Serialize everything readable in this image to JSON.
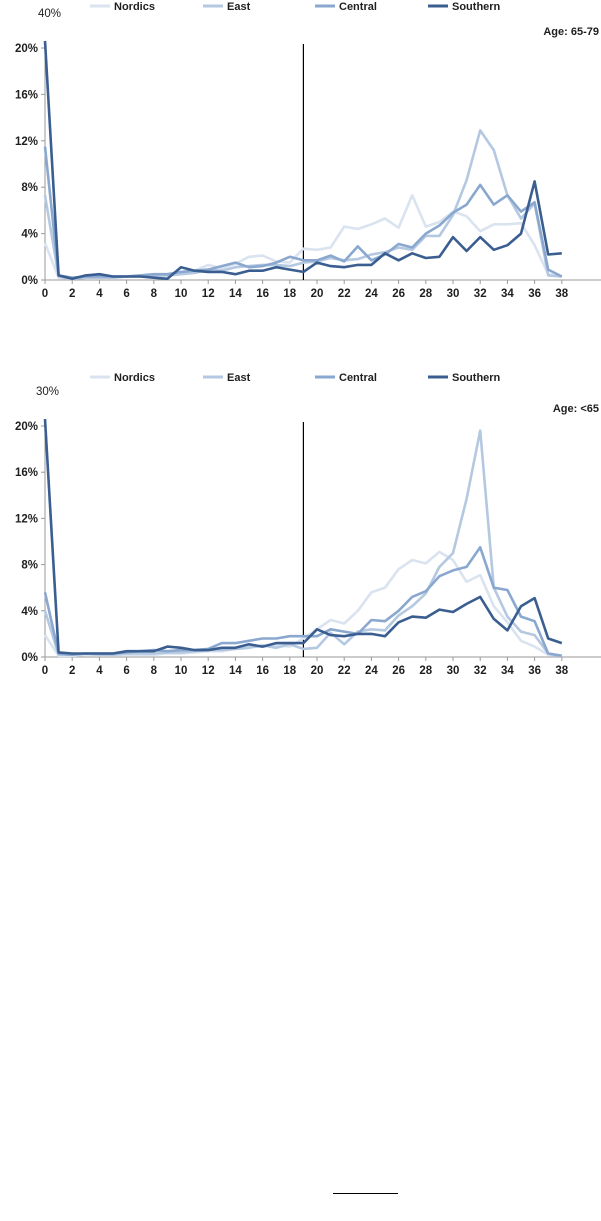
{
  "colors": {
    "Nordics": "#dae3f0",
    "East": "#b4c8e1",
    "Central": "#8aa8cf",
    "Southern": "#3a5e90",
    "axis": "#9a9a9a",
    "divider": "#000000"
  },
  "chart_data": [
    {
      "type": "line",
      "corner_label": "Age: 65-79",
      "peak_label": "40%",
      "ylim": [
        0,
        20
      ],
      "y_ticks": [
        "0%",
        "4%",
        "8%",
        "12%",
        "16%",
        "20%"
      ],
      "x_ticks": [
        "0",
        "2",
        "4",
        "6",
        "8",
        "10",
        "12",
        "14",
        "16",
        "18",
        "20",
        "22",
        "24",
        "26",
        "28",
        "30",
        "32",
        "34",
        "36",
        "38"
      ],
      "divider_x": 19,
      "legend_position": "top",
      "x": [
        0,
        1,
        2,
        3,
        4,
        5,
        6,
        7,
        8,
        9,
        10,
        11,
        12,
        13,
        14,
        15,
        16,
        17,
        18,
        19,
        20,
        21,
        22,
        23,
        24,
        25,
        26,
        27,
        28,
        29,
        30,
        31,
        32,
        33,
        34,
        35,
        36,
        37,
        38
      ],
      "series": [
        {
          "name": "Nordics",
          "values": [
            3.2,
            0.2,
            0.1,
            0.2,
            0.2,
            0.2,
            0.3,
            0.4,
            0.4,
            0.5,
            0.6,
            0.8,
            1.3,
            1.0,
            1.4,
            2.0,
            2.1,
            1.6,
            1.5,
            2.7,
            2.6,
            2.8,
            4.6,
            4.4,
            4.8,
            5.3,
            4.5,
            7.3,
            4.6,
            5.0,
            5.9,
            5.5,
            4.2,
            4.8,
            4.8,
            4.9,
            3.0,
            0.5,
            0.3
          ]
        },
        {
          "name": "East",
          "values": [
            7.3,
            0.3,
            0.1,
            0.2,
            0.2,
            0.2,
            0.3,
            0.3,
            0.4,
            0.4,
            0.5,
            0.6,
            0.9,
            0.8,
            1.1,
            1.2,
            1.3,
            1.3,
            1.2,
            1.5,
            1.6,
            1.9,
            1.7,
            1.8,
            2.2,
            2.4,
            2.8,
            2.6,
            3.8,
            3.8,
            5.6,
            8.6,
            12.9,
            11.2,
            7.3,
            5.3,
            6.6,
            0.4,
            0.3
          ]
        },
        {
          "name": "Central",
          "values": [
            11.5,
            0.4,
            0.2,
            0.3,
            0.3,
            0.3,
            0.3,
            0.4,
            0.5,
            0.5,
            0.7,
            0.8,
            0.9,
            1.2,
            1.5,
            1.1,
            1.2,
            1.5,
            2.0,
            1.7,
            1.7,
            2.1,
            1.6,
            2.9,
            1.7,
            2.2,
            3.1,
            2.8,
            4.0,
            4.7,
            5.8,
            6.5,
            8.2,
            6.5,
            7.3,
            5.9,
            6.7,
            0.9,
            0.3
          ]
        },
        {
          "name": "Southern",
          "values": [
            21.0,
            0.4,
            0.1,
            0.4,
            0.5,
            0.3,
            0.3,
            0.3,
            0.2,
            0.1,
            1.1,
            0.8,
            0.7,
            0.7,
            0.5,
            0.8,
            0.8,
            1.1,
            0.9,
            0.7,
            1.5,
            1.2,
            1.1,
            1.3,
            1.3,
            2.3,
            1.7,
            2.3,
            1.9,
            2.0,
            3.7,
            2.5,
            3.7,
            2.6,
            3.0,
            4.0,
            8.5,
            2.2,
            2.3
          ]
        }
      ]
    },
    {
      "type": "line",
      "corner_label": "Age: <65",
      "peak_label": "30%",
      "ylim": [
        0,
        20
      ],
      "y_ticks": [
        "0%",
        "4%",
        "8%",
        "12%",
        "16%",
        "20%"
      ],
      "x_ticks": [
        "0",
        "2",
        "4",
        "6",
        "8",
        "10",
        "12",
        "14",
        "16",
        "18",
        "20",
        "22",
        "24",
        "26",
        "28",
        "30",
        "32",
        "34",
        "36",
        "38"
      ],
      "divider_x": 19,
      "legend_position": "top",
      "x": [
        0,
        1,
        2,
        3,
        4,
        5,
        6,
        7,
        8,
        9,
        10,
        11,
        12,
        13,
        14,
        15,
        16,
        17,
        18,
        19,
        20,
        21,
        22,
        23,
        24,
        25,
        26,
        27,
        28,
        29,
        30,
        31,
        32,
        33,
        34,
        35,
        36,
        37,
        38
      ],
      "series": [
        {
          "name": "Nordics",
          "values": [
            1.9,
            0.1,
            0.1,
            0.2,
            0.2,
            0.2,
            0.2,
            0.2,
            0.2,
            0.3,
            0.3,
            0.4,
            0.5,
            0.5,
            0.7,
            0.9,
            0.9,
            1.0,
            0.9,
            1.6,
            2.4,
            3.2,
            2.9,
            4.0,
            5.6,
            6.0,
            7.6,
            8.4,
            8.1,
            9.1,
            8.4,
            6.5,
            7.1,
            4.4,
            3.0,
            1.4,
            0.9,
            0.2,
            0.1
          ]
        },
        {
          "name": "East",
          "values": [
            4.0,
            0.2,
            0.2,
            0.3,
            0.2,
            0.2,
            0.3,
            0.3,
            0.3,
            0.4,
            0.4,
            0.5,
            0.6,
            0.6,
            0.7,
            0.8,
            1.0,
            0.8,
            1.1,
            0.7,
            0.8,
            2.1,
            1.1,
            2.2,
            2.4,
            2.3,
            3.6,
            4.4,
            5.5,
            7.8,
            9.0,
            13.7,
            19.6,
            6.0,
            3.5,
            2.2,
            1.9,
            0.3,
            0.1
          ]
        },
        {
          "name": "Central",
          "values": [
            5.6,
            0.3,
            0.2,
            0.3,
            0.3,
            0.3,
            0.4,
            0.5,
            0.6,
            0.5,
            0.6,
            0.6,
            0.7,
            1.2,
            1.2,
            1.4,
            1.6,
            1.6,
            1.8,
            1.8,
            1.8,
            2.4,
            2.2,
            2.0,
            3.2,
            3.1,
            4.0,
            5.2,
            5.7,
            7.0,
            7.5,
            7.8,
            9.5,
            6.0,
            5.8,
            3.5,
            3.1,
            0.3,
            0.1
          ]
        },
        {
          "name": "Southern",
          "values": [
            21.0,
            0.4,
            0.3,
            0.3,
            0.3,
            0.3,
            0.5,
            0.5,
            0.5,
            0.9,
            0.8,
            0.6,
            0.6,
            0.8,
            0.8,
            1.1,
            0.9,
            1.2,
            1.2,
            1.2,
            2.4,
            1.9,
            1.8,
            2.0,
            2.0,
            1.8,
            3.0,
            3.5,
            3.4,
            4.1,
            3.9,
            4.6,
            5.2,
            3.3,
            2.3,
            4.4,
            5.1,
            1.6,
            1.2
          ]
        }
      ]
    }
  ]
}
